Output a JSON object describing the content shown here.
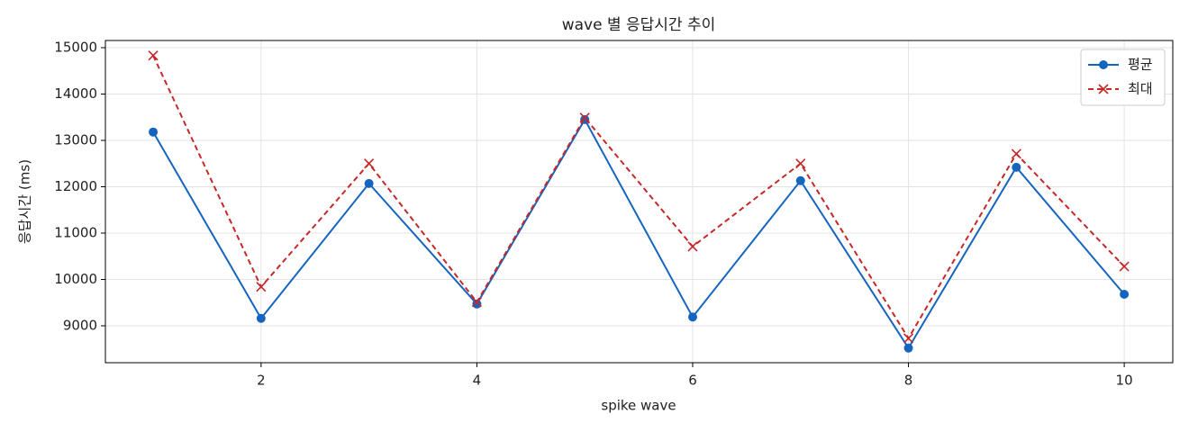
{
  "chart_data": {
    "type": "line",
    "title": "wave 별 응답시간 추이",
    "xlabel": "spike wave",
    "ylabel": "응답시간 (ms)",
    "x": [
      1,
      2,
      3,
      4,
      5,
      6,
      7,
      8,
      9,
      10
    ],
    "series": [
      {
        "name": "평균",
        "color": "#1565c0",
        "marker": "o",
        "linestyle": "solid",
        "values": [
          13180,
          9160,
          12070,
          9470,
          13450,
          9190,
          12130,
          8520,
          12420,
          9680
        ]
      },
      {
        "name": "최대",
        "color": "#c62828",
        "marker": "x",
        "linestyle": "dashed",
        "values": [
          14830,
          9840,
          12500,
          9510,
          13490,
          10710,
          12500,
          8730,
          12710,
          10280
        ]
      }
    ],
    "xlim": [
      0.557,
      10.45
    ],
    "xticks": [
      2,
      4,
      6,
      8,
      10
    ],
    "ylim": [
      8204,
      15155
    ],
    "yticks": [
      9000,
      10000,
      11000,
      12000,
      13000,
      14000,
      15000
    ],
    "grid": true,
    "legend": "upper right"
  }
}
